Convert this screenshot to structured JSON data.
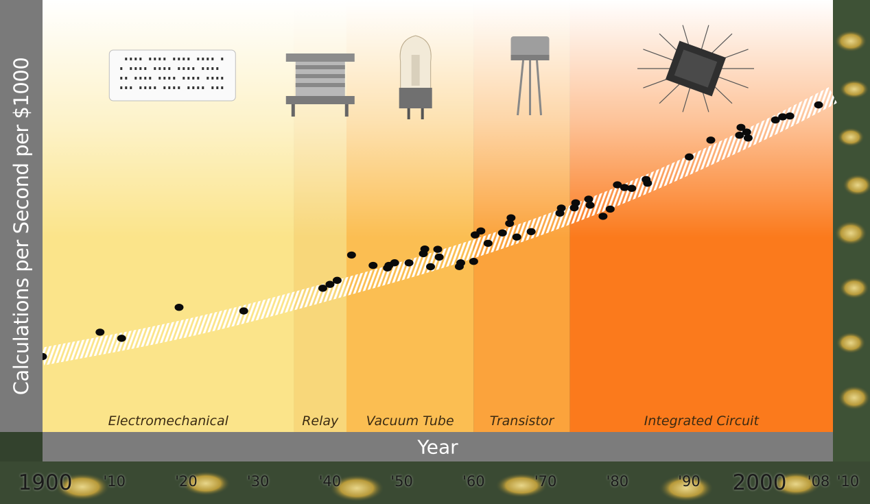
{
  "chart_data": {
    "type": "scatter",
    "title": "",
    "xlabel": "Year",
    "ylabel": "Calculations per Second per $1000",
    "xlim": [
      1900,
      2010
    ],
    "x_ticks": [
      {
        "value": 1900,
        "label": "1900"
      },
      {
        "value": 1910,
        "label": "'10"
      },
      {
        "value": 1920,
        "label": "'20"
      },
      {
        "value": 1930,
        "label": "'30"
      },
      {
        "value": 1940,
        "label": "'40"
      },
      {
        "value": 1950,
        "label": "'50"
      },
      {
        "value": 1960,
        "label": "'60"
      },
      {
        "value": 1970,
        "label": "'70"
      },
      {
        "value": 1980,
        "label": "'80"
      },
      {
        "value": 1990,
        "label": "'90"
      },
      {
        "value": 2000,
        "label": "2000"
      },
      {
        "value": 2008,
        "label": "'08"
      },
      {
        "value": 2010,
        "label": "'10"
      }
    ],
    "eras": [
      {
        "label": "Electromechanical",
        "start": 1900,
        "end": 1935,
        "color": "#fbe48a",
        "icon": "punched-card-icon"
      },
      {
        "label": "Relay",
        "start": 1935,
        "end": 1942.3,
        "color": "#f8d77a",
        "icon": "relay-icon"
      },
      {
        "label": "Vacuum Tube",
        "start": 1942.3,
        "end": 1960,
        "color": "#fbbe52",
        "icon": "vacuum-tube-icon"
      },
      {
        "label": "Transistor",
        "start": 1960,
        "end": 1973.4,
        "color": "#fba33c",
        "icon": "transistor-icon"
      },
      {
        "label": "Integrated Circuit",
        "start": 1973.4,
        "end": 2010,
        "color": "#fb7a1c",
        "icon": "integrated-circuit-icon"
      }
    ],
    "y_scale": "log",
    "trend_style": "striped-white-band",
    "points": [
      [
        1900,
        0.13
      ],
      [
        1908,
        0.83
      ],
      [
        1911,
        0.52
      ],
      [
        1919,
        5.48
      ],
      [
        1928,
        4.15
      ],
      [
        1939,
        23.3
      ],
      [
        1940,
        31.3
      ],
      [
        1941,
        42.4
      ],
      [
        1943,
        291
      ],
      [
        1946,
        132
      ],
      [
        1948,
        109
      ],
      [
        1948.2,
        132
      ],
      [
        1949,
        161
      ],
      [
        1951,
        160
      ],
      [
        1953,
        323
      ],
      [
        1953.2,
        459
      ],
      [
        1954,
        120
      ],
      [
        1955,
        448
      ],
      [
        1955.2,
        248
      ],
      [
        1958,
        121
      ],
      [
        1958.2,
        160
      ],
      [
        1960,
        179
      ],
      [
        1960.2,
        1343
      ],
      [
        1961,
        1806
      ],
      [
        1962,
        708
      ],
      [
        1964,
        1555
      ],
      [
        1965,
        3211
      ],
      [
        1965.2,
        4902
      ],
      [
        1966,
        1139
      ],
      [
        1968,
        1720
      ],
      [
        1972,
        7000
      ],
      [
        1972.2,
        10300
      ],
      [
        1974,
        10500
      ],
      [
        1974.2,
        15300
      ],
      [
        1976,
        20200
      ],
      [
        1976.2,
        12800
      ],
      [
        1978,
        5500
      ],
      [
        1979,
        9500
      ],
      [
        1980,
        60000
      ],
      [
        1981,
        49000
      ],
      [
        1982,
        46000
      ],
      [
        1984,
        90000
      ],
      [
        1984.2,
        68000
      ],
      [
        1990,
        500000
      ],
      [
        1993,
        1800000
      ],
      [
        1997,
        2600000
      ],
      [
        1997.2,
        4700000
      ],
      [
        1998,
        3300000
      ],
      [
        1998.2,
        2100000
      ],
      [
        2002,
        8300000
      ],
      [
        2003,
        10500000
      ],
      [
        2004,
        11200000
      ],
      [
        2008,
        26000000
      ]
    ],
    "trend": [
      [
        1900,
        0.13
      ],
      [
        1920,
        1.0
      ],
      [
        1940,
        18
      ],
      [
        1960,
        420
      ],
      [
        1980,
        22000
      ],
      [
        2000,
        3200000
      ],
      [
        2010,
        55000000
      ]
    ],
    "grid": false,
    "legend": "none"
  }
}
